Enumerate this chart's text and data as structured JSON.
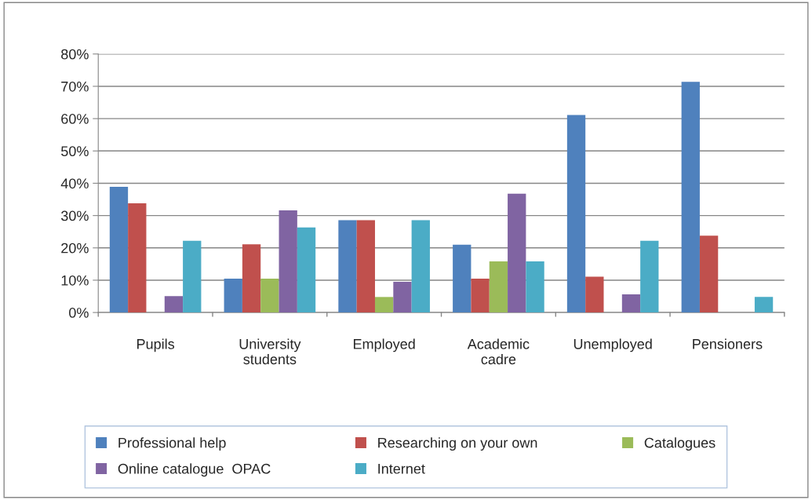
{
  "chart_data": {
    "type": "bar",
    "categories": [
      "Pupils",
      "University\nstudents",
      "Employed",
      "Academic\ncadre",
      "Unemployed",
      "Pensioners"
    ],
    "series": [
      {
        "name": "Professional help",
        "color": "#4f81bd",
        "values": [
          38.9,
          10.5,
          28.6,
          21.0,
          61.1,
          71.4
        ]
      },
      {
        "name": "Researching on your own",
        "color": "#c0504d",
        "values": [
          33.8,
          21.1,
          28.6,
          10.5,
          11.1,
          23.8
        ]
      },
      {
        "name": "Catalogues",
        "color": "#9bbb59",
        "values": [
          0,
          10.5,
          4.8,
          15.8,
          0,
          0
        ]
      },
      {
        "name": "Online catalogue  OPAC",
        "color": "#8064a2",
        "values": [
          5.1,
          31.6,
          9.5,
          36.8,
          5.6,
          0
        ]
      },
      {
        "name": "Internet",
        "color": "#4bacc6",
        "values": [
          22.2,
          26.3,
          28.6,
          15.8,
          22.2,
          4.8
        ]
      }
    ],
    "ylim": [
      0,
      80
    ],
    "yticks": [
      {
        "value": 0,
        "label": "0%"
      },
      {
        "value": 10,
        "label": "10%"
      },
      {
        "value": 20,
        "label": "20%"
      },
      {
        "value": 30,
        "label": "30%"
      },
      {
        "value": 40,
        "label": "40%"
      },
      {
        "value": 50,
        "label": "50%"
      },
      {
        "value": 60,
        "label": "60%"
      },
      {
        "value": 70,
        "label": "70%"
      },
      {
        "value": 80,
        "label": "80%"
      }
    ],
    "grid": "y",
    "legend": "bottom"
  }
}
